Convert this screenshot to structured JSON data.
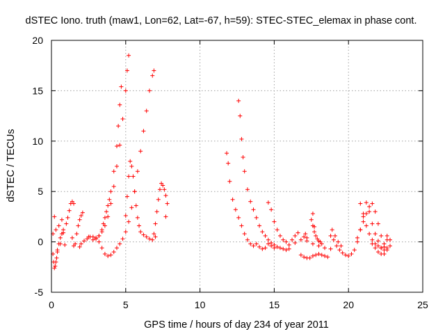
{
  "chart_data": {
    "type": "scatter",
    "title": "dSTEC Iono. truth (maw1, Lon=62, Lat=-67, h=59): STEC-STEC_elemax in phase cont.",
    "xlabel": "GPS time / hours of day 234 of year 2011",
    "ylabel": "dSTEC  / TECUs",
    "xlim": [
      0,
      25
    ],
    "ylim": [
      -5,
      20
    ],
    "xticks": [
      0,
      5,
      10,
      15,
      20,
      25
    ],
    "yticks": [
      -5,
      0,
      5,
      10,
      15,
      20
    ],
    "grid": true,
    "marker": "plus",
    "marker_color": "#ff0000",
    "series": [
      {
        "x": [
          0.1,
          0.2,
          0.3,
          0.4,
          0.5,
          0.6,
          0.7,
          0.8,
          0.9,
          1.0,
          1.1,
          1.2,
          1.3,
          1.4,
          1.5
        ],
        "y": [
          0.8,
          2.5,
          1.2,
          -0.8,
          1.6,
          -0.2,
          2.2,
          0.9,
          -0.3,
          1.8,
          2.4,
          3.1,
          3.8,
          4.0,
          3.8
        ]
      },
      {
        "x": [
          0.1,
          0.15,
          0.2,
          0.25,
          0.3,
          0.35,
          0.4,
          0.5,
          0.6,
          0.7,
          0.8
        ],
        "y": [
          -1.2,
          -2.0,
          -2.6,
          -2.4,
          -2.0,
          -1.6,
          -1.0,
          -0.2,
          0.4,
          0.8,
          1.2
        ]
      },
      {
        "x": [
          1.4,
          1.5,
          1.6,
          1.7,
          1.8,
          1.9,
          2.0,
          2.1
        ],
        "y": [
          0.4,
          -0.4,
          -0.2,
          0.8,
          1.6,
          2.2,
          2.6,
          2.9
        ]
      },
      {
        "x": [
          1.9,
          2.0,
          2.2,
          2.4,
          2.6,
          2.8,
          3.0,
          3.2,
          3.4,
          3.6,
          3.8,
          4.0,
          4.2,
          4.4,
          4.6,
          4.8,
          5.0,
          5.1,
          5.2
        ],
        "y": [
          -0.5,
          -0.2,
          0.1,
          0.3,
          0.5,
          0.5,
          0.4,
          0.6,
          1.0,
          1.6,
          2.5,
          3.8,
          5.5,
          7.5,
          9.6,
          12.2,
          15.0,
          17.0,
          18.5
        ]
      },
      {
        "x": [
          2.5,
          2.8,
          3.0,
          3.2,
          3.4,
          3.5,
          3.6,
          3.7,
          3.8,
          3.9,
          4.0,
          4.2,
          4.4,
          4.5,
          4.6,
          4.7
        ],
        "y": [
          0.5,
          0.2,
          0.3,
          0.6,
          1.2,
          1.8,
          2.4,
          3.0,
          3.6,
          4.2,
          5.0,
          7.0,
          9.5,
          11.5,
          13.6,
          15.4
        ]
      },
      {
        "x": [
          3.2,
          3.4,
          3.6,
          3.8,
          4.0,
          4.2,
          4.4,
          4.6,
          4.8,
          5.0,
          5.2,
          5.4,
          5.6,
          5.8,
          6.0,
          6.2,
          6.4,
          6.6,
          6.8,
          6.9
        ],
        "y": [
          0.0,
          -0.6,
          -1.2,
          -1.4,
          -1.3,
          -1.0,
          -0.6,
          -0.2,
          0.3,
          1.0,
          2.0,
          3.4,
          5.0,
          7.0,
          9.0,
          11.0,
          13.0,
          15.0,
          16.5,
          17.0
        ]
      },
      {
        "x": [
          5.0,
          5.1,
          5.2,
          5.3,
          5.4,
          5.5,
          5.6,
          5.7,
          5.8,
          5.9,
          6.0,
          6.2,
          6.4,
          6.6,
          6.8,
          7.0
        ],
        "y": [
          2.6,
          4.5,
          6.5,
          8.0,
          7.5,
          6.5,
          5.0,
          3.6,
          2.4,
          1.6,
          1.0,
          0.7,
          0.5,
          0.3,
          0.2,
          0.5
        ]
      },
      {
        "x": [
          6.9,
          7.0,
          7.1,
          7.2,
          7.3,
          7.4,
          7.5,
          7.6,
          7.7,
          7.8
        ],
        "y": [
          0.8,
          1.8,
          3.0,
          4.2,
          5.2,
          5.8,
          5.6,
          5.2,
          4.6,
          3.8
        ]
      },
      {
        "x": [
          7.7
        ],
        "y": [
          2.5
        ]
      },
      {
        "x": [
          11.8,
          11.9,
          12.0,
          12.2,
          12.4,
          12.6,
          12.8,
          13.0,
          13.2,
          13.4,
          13.6,
          13.8,
          14.0,
          14.2,
          14.4,
          14.6,
          14.8,
          15.0
        ],
        "y": [
          8.8,
          7.8,
          6.0,
          4.2,
          3.2,
          2.4,
          1.6,
          0.8,
          0.2,
          -0.2,
          -0.4,
          -0.2,
          -0.5,
          -0.7,
          -0.6,
          -0.2,
          -0.4,
          -0.6
        ]
      },
      {
        "x": [
          12.6,
          12.7,
          12.8,
          12.9,
          13.0,
          13.2,
          13.4,
          13.6,
          13.8,
          14.0,
          14.2,
          14.4,
          14.6,
          14.8,
          15.0,
          15.2,
          15.4,
          15.6,
          15.8,
          16.0
        ],
        "y": [
          14.0,
          12.5,
          10.2,
          8.4,
          7.0,
          5.2,
          4.0,
          3.2,
          2.4,
          1.6,
          1.0,
          0.6,
          0.2,
          -0.1,
          -0.3,
          -0.5,
          -0.6,
          -0.7,
          -0.8,
          -0.7
        ]
      },
      {
        "x": [
          14.6,
          14.8,
          15.0,
          15.2,
          15.4,
          15.6,
          15.8,
          16.0,
          16.4,
          16.8,
          17.2,
          17.6,
          18.0,
          18.4,
          18.8
        ],
        "y": [
          3.9,
          3.2,
          2.0,
          1.2,
          0.6,
          0.2,
          0.0,
          -0.3,
          -0.1,
          0.2,
          0.1,
          -0.2,
          -0.4,
          -0.6,
          -0.7
        ]
      },
      {
        "x": [
          16.8,
          17.0,
          17.2,
          17.4,
          17.6,
          17.8,
          18.0,
          18.2,
          18.4,
          18.6
        ],
        "y": [
          -1.3,
          -1.5,
          -1.6,
          -1.6,
          -1.4,
          -1.3,
          -1.2,
          -1.3,
          -1.4,
          -1.5
        ]
      },
      {
        "x": [
          17.5,
          17.6,
          17.7,
          17.8,
          17.9,
          18.0,
          18.1,
          18.2
        ],
        "y": [
          2.2,
          1.6,
          1.0,
          0.6,
          0.3,
          0.1,
          0.0,
          -0.2
        ]
      },
      {
        "x": [
          17.0,
          17.1,
          17.2
        ],
        "y": [
          0.5,
          0.8,
          0.4
        ]
      },
      {
        "x": [
          17.6,
          17.7
        ],
        "y": [
          2.8,
          1.5
        ]
      },
      {
        "x": [
          16.2,
          16.4,
          16.6
        ],
        "y": [
          0.2,
          0.6,
          0.9
        ]
      },
      {
        "x": [
          18.8,
          19.0,
          19.2,
          19.4,
          19.6,
          19.8,
          20.0,
          20.2,
          20.4,
          20.6,
          20.8,
          21.0
        ],
        "y": [
          0.6,
          0.2,
          -0.4,
          -0.8,
          -1.1,
          -1.3,
          -1.4,
          -1.2,
          -0.8,
          0.0,
          1.2,
          2.5
        ]
      },
      {
        "x": [
          18.9,
          19.1,
          19.3,
          19.5
        ],
        "y": [
          1.2,
          0.6,
          0.0,
          -0.4
        ]
      },
      {
        "x": [
          20.8,
          21.0,
          21.2,
          21.4,
          21.6,
          21.8,
          22.0,
          22.2,
          22.4,
          22.6,
          22.8
        ],
        "y": [
          3.8,
          2.8,
          1.6,
          0.8,
          0.2,
          -0.2,
          -0.4,
          -0.6,
          -0.5,
          0.2,
          -0.4
        ]
      },
      {
        "x": [
          20.6,
          20.8,
          21.0,
          21.2,
          21.4,
          21.6,
          21.8,
          22.0,
          22.2,
          22.4,
          22.6
        ],
        "y": [
          0.4,
          1.2,
          2.0,
          2.8,
          3.5,
          3.8,
          3.0,
          1.8,
          0.6,
          -0.2,
          -0.6
        ]
      },
      {
        "x": [
          21.2,
          21.4,
          21.6,
          21.8,
          22.0,
          22.2,
          22.4,
          22.6,
          22.8
        ],
        "y": [
          3.9,
          3.0,
          1.8,
          0.8,
          0.1,
          -0.6,
          -1.2,
          -0.8,
          0.2
        ]
      },
      {
        "x": [
          21.6,
          21.8,
          22.0,
          22.2,
          22.4,
          22.6
        ],
        "y": [
          -0.2,
          -0.6,
          -1.0,
          -1.2,
          -0.8,
          0.6
        ]
      }
    ]
  }
}
